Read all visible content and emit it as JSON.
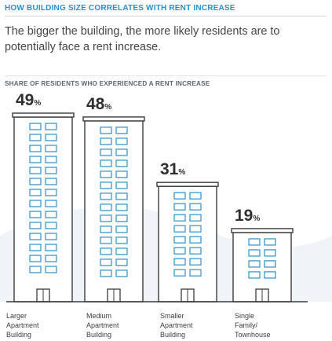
{
  "title": "HOW BUILDING SIZE CORRELATES WITH RENT INCREASE",
  "subtitle": "The bigger the building, the more likely residents are to potentially face a rent increase.",
  "section_label": "SHARE OF RESIDENTS WHO EXPERIENCED A RENT INCREASE",
  "colors": {
    "accent": "#2b8fc9",
    "text": "#3a3a3a",
    "background_wave": "#eef4f8"
  },
  "chart_data": {
    "type": "bar",
    "title": "",
    "xlabel": "",
    "ylabel": "",
    "unit": "%",
    "categories": [
      "Larger Apartment Building",
      "Medium Apartment Building",
      "Smaller Apartment Building",
      "Single Family/ Townhouse"
    ],
    "category_lines": [
      [
        "Larger",
        "Apartment",
        "Building"
      ],
      [
        "Medium",
        "Apartment",
        "Building"
      ],
      [
        "Smaller",
        "Apartment",
        "Building"
      ],
      [
        "Single",
        "Family/",
        "Townhouse"
      ]
    ],
    "values": [
      49,
      48,
      31,
      19
    ],
    "value_labels": [
      "49",
      "48",
      "31",
      "19"
    ],
    "ylim": [
      0,
      49
    ],
    "grid": false,
    "legend": "none"
  }
}
